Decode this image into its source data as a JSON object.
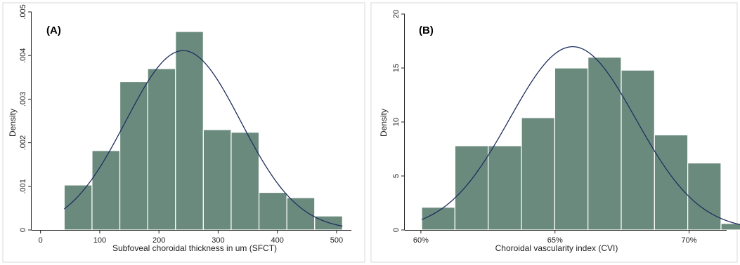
{
  "colors": {
    "bar": "#6b8a7e",
    "curve": "#1f2f5e"
  },
  "chart_data": [
    {
      "type": "bar",
      "panel": "(A)",
      "title": "",
      "xlabel": "Subfoveal choroidal thickness  in um (SFCT)",
      "ylabel": "Density",
      "xlim": [
        -15,
        525
      ],
      "ylim": [
        0,
        0.005
      ],
      "xticks": [
        {
          "value": 0,
          "label": "0"
        },
        {
          "value": 100,
          "label": "100"
        },
        {
          "value": 200,
          "label": "200"
        },
        {
          "value": 300,
          "label": "300"
        },
        {
          "value": 400,
          "label": "400"
        },
        {
          "value": 500,
          "label": "500"
        }
      ],
      "yticks": [
        {
          "value": 0,
          "label": "0"
        },
        {
          "value": 0.001,
          "label": ".001"
        },
        {
          "value": 0.002,
          "label": ".002"
        },
        {
          "value": 0.003,
          "label": ".003"
        },
        {
          "value": 0.004,
          "label": ".004"
        },
        {
          "value": 0.005,
          "label": ".005"
        }
      ],
      "bins": [
        {
          "x0": 40,
          "x1": 87,
          "value": 0.00103
        },
        {
          "x0": 87,
          "x1": 134,
          "value": 0.00182
        },
        {
          "x0": 134,
          "x1": 181,
          "value": 0.0034
        },
        {
          "x0": 181,
          "x1": 228,
          "value": 0.0037
        },
        {
          "x0": 228,
          "x1": 275,
          "value": 0.00455
        },
        {
          "x0": 275,
          "x1": 322,
          "value": 0.0023
        },
        {
          "x0": 322,
          "x1": 369,
          "value": 0.00224
        },
        {
          "x0": 369,
          "x1": 416,
          "value": 0.00086
        },
        {
          "x0": 416,
          "x1": 463,
          "value": 0.00074
        },
        {
          "x0": 463,
          "x1": 510,
          "value": 0.00032
        }
      ],
      "normal_curve": {
        "mean": 241,
        "sd": 97,
        "x_range": [
          40,
          510
        ]
      }
    },
    {
      "type": "bar",
      "panel": "(B)",
      "title": "",
      "xlabel": "Choroidal vascularity index (CVI)",
      "ylabel": "Density",
      "xlim": [
        0.594,
        0.714
      ],
      "ylim": [
        0,
        20
      ],
      "xticks": [
        {
          "value": 0.6,
          "label": "60%"
        },
        {
          "value": 0.65,
          "label": "65%"
        },
        {
          "value": 0.7,
          "label": "70%"
        }
      ],
      "yticks": [
        {
          "value": 0,
          "label": "0"
        },
        {
          "value": 5,
          "label": "5"
        },
        {
          "value": 10,
          "label": "10"
        },
        {
          "value": 15,
          "label": "15"
        },
        {
          "value": 20,
          "label": "20"
        }
      ],
      "bins": [
        {
          "x0": 0.6003,
          "x1": 0.6127,
          "value": 2.1
        },
        {
          "x0": 0.6127,
          "x1": 0.6251,
          "value": 7.8
        },
        {
          "x0": 0.6251,
          "x1": 0.6375,
          "value": 7.8
        },
        {
          "x0": 0.6375,
          "x1": 0.6499,
          "value": 10.4
        },
        {
          "x0": 0.6499,
          "x1": 0.6623,
          "value": 15.0
        },
        {
          "x0": 0.6623,
          "x1": 0.6747,
          "value": 16.0
        },
        {
          "x0": 0.6747,
          "x1": 0.6871,
          "value": 14.8
        },
        {
          "x0": 0.6871,
          "x1": 0.6995,
          "value": 8.8
        },
        {
          "x0": 0.6995,
          "x1": 0.7119,
          "value": 6.2
        },
        {
          "x0": 0.7119,
          "x1": 0.7243,
          "value": 0.6
        }
      ],
      "normal_curve": {
        "mean": 0.6566,
        "sd": 0.0235,
        "x_range": [
          0.6003,
          0.7243
        ]
      }
    }
  ]
}
